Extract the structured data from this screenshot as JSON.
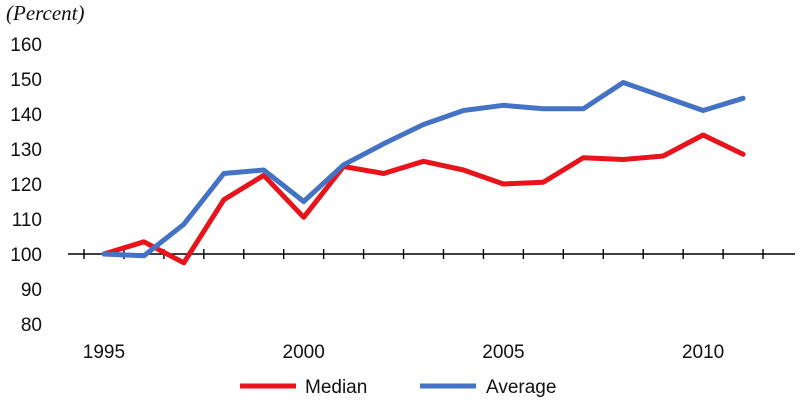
{
  "chart_data": {
    "type": "line",
    "title": "",
    "y_unit_label": "(Percent)",
    "xlabel": "",
    "ylabel": "",
    "x": [
      1995,
      1996,
      1997,
      1998,
      1999,
      2000,
      2001,
      2002,
      2003,
      2004,
      2005,
      2006,
      2007,
      2008,
      2009,
      2010,
      2011
    ],
    "x_ticks": [
      "1995",
      "2000",
      "2005",
      "2010"
    ],
    "y_ticks": [
      "80",
      "90",
      "100",
      "110",
      "120",
      "130",
      "140",
      "150",
      "160"
    ],
    "xlim": [
      1994.1,
      2012.3
    ],
    "ylim": [
      80,
      160
    ],
    "baseline": 100,
    "grid": false,
    "legend_position": "bottom",
    "series": [
      {
        "name": "Median",
        "color": "#e8141c",
        "values": [
          100,
          103.5,
          97.5,
          115.5,
          122.5,
          110.5,
          125,
          123,
          126.5,
          124,
          120,
          120.5,
          127.5,
          127,
          128,
          134,
          128.5
        ]
      },
      {
        "name": "Average",
        "color": "#4472c4",
        "values": [
          100,
          99.5,
          108.5,
          123,
          124,
          115,
          125.5,
          131.5,
          137,
          141,
          142.5,
          141.5,
          141.5,
          149,
          145,
          141,
          144.5
        ]
      }
    ]
  }
}
